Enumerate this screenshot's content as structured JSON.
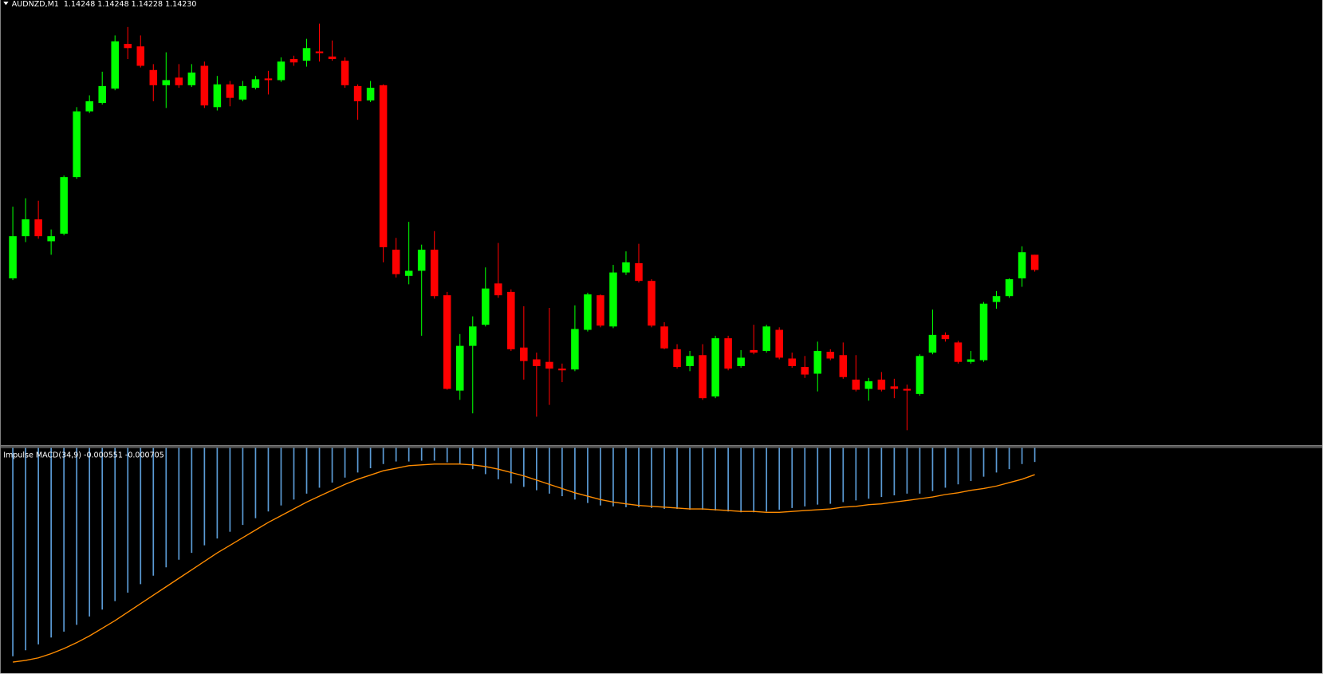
{
  "chart_data": [
    {
      "type": "candlestick",
      "title": "AUDNZD,M1  1.14248 1.14248 1.14228 1.14230",
      "up_color": "#00ff00",
      "down_color": "#ff0000",
      "ylim": [
        1.14023,
        1.1455
      ],
      "open": [
        1.1422,
        1.1427,
        1.1429,
        1.14264,
        1.14273,
        1.1434,
        1.14418,
        1.14428,
        1.14445,
        1.14498,
        1.14495,
        1.14467,
        1.14449,
        1.14458,
        1.14449,
        1.14472,
        1.14423,
        1.1445,
        1.14432,
        1.14446,
        1.14457,
        1.14455,
        1.1448,
        1.14478,
        1.14489,
        1.14483,
        1.14478,
        1.14448,
        1.14431,
        1.14449,
        1.14254,
        1.14223,
        1.14229,
        1.14254,
        1.142,
        1.14087,
        1.1414,
        1.14165,
        1.14214,
        1.14204,
        1.14138,
        1.14124,
        1.14121,
        1.14113,
        1.14112,
        1.14159,
        1.142,
        1.14163,
        1.14227,
        1.14238,
        1.14217,
        1.14163,
        1.14136,
        1.14116,
        1.14129,
        1.1408,
        1.14149,
        1.14116,
        1.14135,
        1.14134,
        1.14159,
        1.14125,
        1.14115,
        1.14107,
        1.14133,
        1.14129,
        1.141,
        1.14089,
        1.141,
        1.14092,
        1.14089,
        1.14083,
        1.14132,
        1.14153,
        1.14144,
        1.14121,
        1.14123,
        1.14192,
        1.14199,
        1.1422,
        1.14248
      ],
      "high": [
        1.14305,
        1.14315,
        1.14312,
        1.14278,
        1.14342,
        1.14423,
        1.14437,
        1.14465,
        1.14508,
        1.14518,
        1.14508,
        1.14474,
        1.14488,
        1.14474,
        1.14474,
        1.14477,
        1.1446,
        1.14454,
        1.14454,
        1.1446,
        1.14466,
        1.14482,
        1.14484,
        1.14504,
        1.14522,
        1.14502,
        1.14482,
        1.1445,
        1.14454,
        1.1445,
        1.14268,
        1.14287,
        1.1426,
        1.14276,
        1.14204,
        1.14154,
        1.14175,
        1.14233,
        1.14262,
        1.14207,
        1.14187,
        1.14132,
        1.14185,
        1.14119,
        1.14188,
        1.14203,
        1.14201,
        1.14236,
        1.14252,
        1.14261,
        1.14219,
        1.14168,
        1.14142,
        1.14134,
        1.14142,
        1.14152,
        1.14152,
        1.14135,
        1.14165,
        1.14165,
        1.14162,
        1.14132,
        1.14128,
        1.14145,
        1.14136,
        1.14144,
        1.14129,
        1.14102,
        1.14109,
        1.14101,
        1.14094,
        1.1413,
        1.14183,
        1.14156,
        1.14146,
        1.14134,
        1.14192,
        1.14205,
        1.1422,
        1.14258,
        1.14248
      ],
      "low": [
        1.14218,
        1.14263,
        1.14267,
        1.14248,
        1.14271,
        1.14338,
        1.14416,
        1.14426,
        1.14443,
        1.1448,
        1.1447,
        1.1443,
        1.14422,
        1.14446,
        1.14447,
        1.14422,
        1.14419,
        1.14424,
        1.1443,
        1.14444,
        1.14438,
        1.14453,
        1.14472,
        1.14471,
        1.14477,
        1.14478,
        1.14446,
        1.14408,
        1.14429,
        1.14239,
        1.14221,
        1.14213,
        1.14152,
        1.14196,
        1.14088,
        1.14076,
        1.1406,
        1.14163,
        1.14197,
        1.14134,
        1.141,
        1.14056,
        1.1407,
        1.14097,
        1.1411,
        1.14157,
        1.14162,
        1.14161,
        1.14224,
        1.14215,
        1.14162,
        1.14136,
        1.14113,
        1.1411,
        1.14076,
        1.14078,
        1.14111,
        1.14114,
        1.1413,
        1.14132,
        1.14124,
        1.14114,
        1.14102,
        1.14086,
        1.14123,
        1.14101,
        1.14086,
        1.14075,
        1.14086,
        1.14078,
        1.1404,
        1.14081,
        1.1413,
        1.14145,
        1.14119,
        1.14119,
        1.14121,
        1.14184,
        1.14197,
        1.1421,
        1.14228
      ],
      "close": [
        1.1427,
        1.1429,
        1.1427,
        1.1427,
        1.1434,
        1.14418,
        1.1443,
        1.14448,
        1.14501,
        1.14493,
        1.14472,
        1.14449,
        1.14455,
        1.14449,
        1.14464,
        1.14425,
        1.1445,
        1.14434,
        1.14448,
        1.14456,
        1.14455,
        1.14477,
        1.14476,
        1.14493,
        1.14487,
        1.1448,
        1.14449,
        1.1443,
        1.14446,
        1.14257,
        1.14225,
        1.14229,
        1.14254,
        1.14199,
        1.14089,
        1.1414,
        1.14163,
        1.14208,
        1.142,
        1.14136,
        1.14122,
        1.14116,
        1.14113,
        1.14111,
        1.1416,
        1.14201,
        1.14164,
        1.14227,
        1.14239,
        1.14217,
        1.14164,
        1.14137,
        1.14115,
        1.14128,
        1.14078,
        1.14149,
        1.14113,
        1.14126,
        1.14132,
        1.14163,
        1.14126,
        1.14116,
        1.14106,
        1.14134,
        1.14125,
        1.14103,
        1.14088,
        1.14098,
        1.14088,
        1.14089,
        1.14087,
        1.14128,
        1.14153,
        1.14148,
        1.14121,
        1.14124,
        1.1419,
        1.14199,
        1.14219,
        1.14251,
        1.1423
      ]
    },
    {
      "type": "macd",
      "title": "Impulse MACD(34,9) -0.000551 -0.000705",
      "ylim": [
        -0.00311,
        -0.00038
      ],
      "series": [
        {
          "type": "bar",
          "color": "#5b9bd5",
          "values": [
            -0.002914,
            -0.002842,
            -0.00277,
            -0.002687,
            -0.002615,
            -0.002533,
            -0.00243,
            -0.002347,
            -0.002244,
            -0.002141,
            -0.002038,
            -0.001935,
            -0.001832,
            -0.00174,
            -0.001657,
            -0.001565,
            -0.001482,
            -0.0014,
            -0.001317,
            -0.001235,
            -0.001153,
            -0.00108,
            -0.001008,
            -0.000936,
            -0.000864,
            -0.000802,
            -0.000741,
            -0.000679,
            -0.000627,
            -0.000576,
            -0.000545,
            -0.000545,
            -0.000535,
            -0.000535,
            -0.000555,
            -0.000576,
            -0.000638,
            -0.000699,
            -0.000761,
            -0.000813,
            -0.000854,
            -0.000895,
            -0.000936,
            -0.000967,
            -0.001008,
            -0.00105,
            -0.00108,
            -0.001091,
            -0.001101,
            -0.001101,
            -0.001111,
            -0.001122,
            -0.001122,
            -0.001132,
            -0.001132,
            -0.001142,
            -0.001153,
            -0.001163,
            -0.001163,
            -0.001153,
            -0.001132,
            -0.001111,
            -0.001091,
            -0.00107,
            -0.00106,
            -0.001039,
            -0.001019,
            -0.000998,
            -0.000977,
            -0.000957,
            -0.000936,
            -0.000936,
            -0.000905,
            -0.000864,
            -0.000823,
            -0.000782,
            -0.00073,
            -0.000679,
            -0.000638,
            -0.000576,
            -0.000551
          ]
        },
        {
          "type": "line",
          "color": "#ff8c00",
          "values": [
            -0.002986,
            -0.002965,
            -0.002934,
            -0.002883,
            -0.002821,
            -0.002749,
            -0.002667,
            -0.002574,
            -0.002481,
            -0.002378,
            -0.002275,
            -0.002172,
            -0.002069,
            -0.001966,
            -0.001863,
            -0.00176,
            -0.001657,
            -0.001565,
            -0.001472,
            -0.001379,
            -0.001286,
            -0.001204,
            -0.001122,
            -0.001039,
            -0.000967,
            -0.000895,
            -0.000823,
            -0.000761,
            -0.00071,
            -0.000658,
            -0.000627,
            -0.000596,
            -0.000586,
            -0.000576,
            -0.000576,
            -0.000576,
            -0.000586,
            -0.000607,
            -0.000638,
            -0.000679,
            -0.00072,
            -0.000771,
            -0.000823,
            -0.000874,
            -0.000926,
            -0.000967,
            -0.001008,
            -0.001039,
            -0.00106,
            -0.00108,
            -0.001091,
            -0.001101,
            -0.001111,
            -0.001122,
            -0.001122,
            -0.001132,
            -0.001142,
            -0.001153,
            -0.001153,
            -0.001163,
            -0.001163,
            -0.001153,
            -0.001142,
            -0.001132,
            -0.001122,
            -0.001101,
            -0.001091,
            -0.00107,
            -0.00106,
            -0.001039,
            -0.001019,
            -0.000998,
            -0.000977,
            -0.000947,
            -0.000926,
            -0.000895,
            -0.000874,
            -0.000844,
            -0.000802,
            -0.000761,
            -0.000705
          ]
        }
      ]
    }
  ]
}
